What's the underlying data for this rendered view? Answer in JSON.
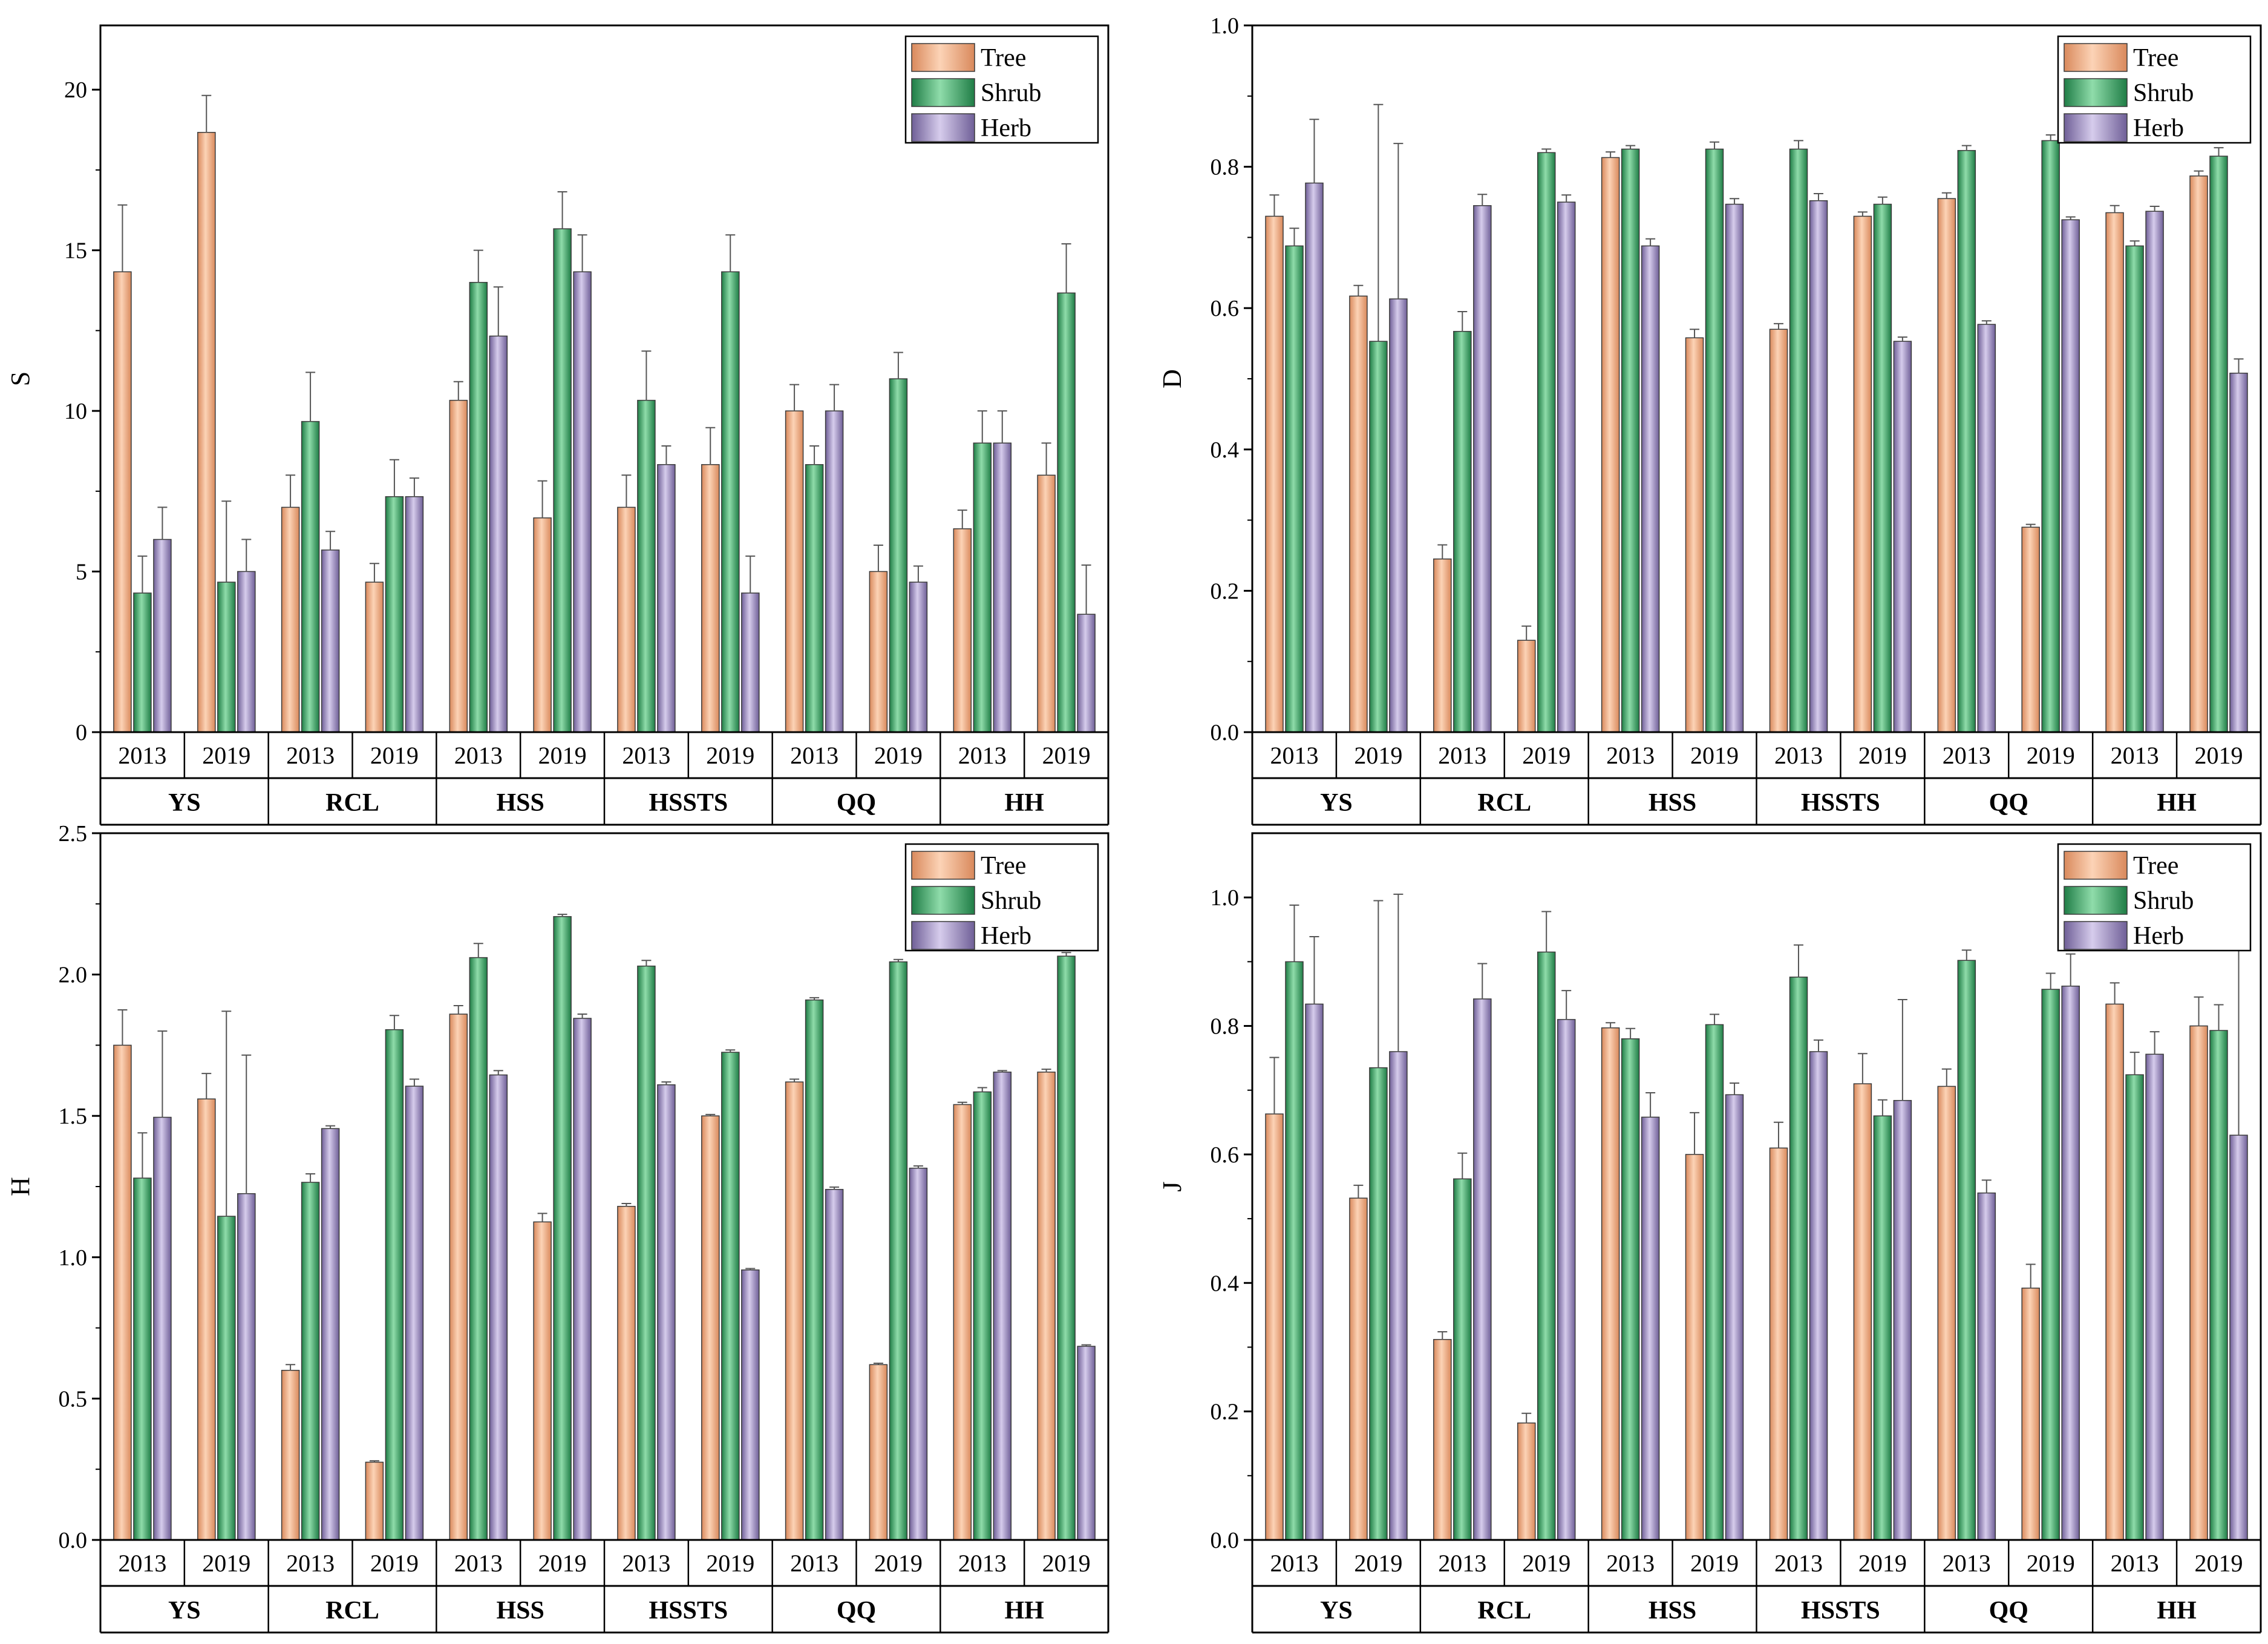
{
  "chart_data": [
    {
      "type": "bar",
      "ylabel": "S",
      "ylim": [
        0,
        22
      ],
      "yticks": [
        0,
        5,
        10,
        15,
        20
      ],
      "sites": [
        "YS",
        "RCL",
        "HSS",
        "HSSTS",
        "QQ",
        "HH"
      ],
      "years": [
        "2013",
        "2019"
      ],
      "legend": [
        "Tree",
        "Shrub",
        "Herb"
      ],
      "series": [
        {
          "name": "Tree",
          "values": [
            14.33,
            18.67,
            7.0,
            4.67,
            10.33,
            6.67,
            7.0,
            8.33,
            10.0,
            5.0,
            6.33,
            8.0
          ],
          "errors": [
            2.08,
            1.15,
            1.0,
            0.58,
            0.58,
            1.15,
            1.0,
            1.15,
            0.82,
            0.82,
            0.58,
            1.0
          ]
        },
        {
          "name": "Shrub",
          "values": [
            4.33,
            4.67,
            9.67,
            7.33,
            14.0,
            15.67,
            10.33,
            14.33,
            8.33,
            11.0,
            9.0,
            13.67
          ],
          "errors": [
            1.15,
            2.52,
            1.53,
            1.15,
            1.0,
            1.15,
            1.53,
            1.15,
            0.58,
            0.82,
            1.0,
            1.53
          ]
        },
        {
          "name": "Herb",
          "values": [
            6.0,
            5.0,
            5.67,
            7.33,
            12.33,
            14.33,
            8.33,
            4.33,
            10.0,
            4.67,
            9.0,
            3.67
          ],
          "errors": [
            1.0,
            1.0,
            0.58,
            0.58,
            1.53,
            1.15,
            0.58,
            1.15,
            0.82,
            0.5,
            1.0,
            1.53
          ]
        }
      ]
    },
    {
      "type": "bar",
      "ylabel": "D",
      "ylim": [
        0,
        1.0
      ],
      "yticks": [
        0.0,
        0.2,
        0.4,
        0.6,
        0.8,
        1.0
      ],
      "sites": [
        "YS",
        "RCL",
        "HSS",
        "HSSTS",
        "QQ",
        "HH"
      ],
      "years": [
        "2013",
        "2019"
      ],
      "legend": [
        "Tree",
        "Shrub",
        "Herb"
      ],
      "series": [
        {
          "name": "Tree",
          "values": [
            0.73,
            0.617,
            0.245,
            0.13,
            0.813,
            0.558,
            0.57,
            0.73,
            0.755,
            0.29,
            0.735,
            0.787
          ],
          "errors": [
            0.03,
            0.015,
            0.02,
            0.02,
            0.008,
            0.012,
            0.008,
            0.006,
            0.008,
            0.004,
            0.01,
            0.007
          ]
        },
        {
          "name": "Shrub",
          "values": [
            0.688,
            0.553,
            0.567,
            0.82,
            0.825,
            0.825,
            0.825,
            0.747,
            0.823,
            0.837,
            0.688,
            0.815
          ],
          "errors": [
            0.025,
            0.335,
            0.028,
            0.005,
            0.005,
            0.01,
            0.012,
            0.01,
            0.007,
            0.008,
            0.007,
            0.012
          ]
        },
        {
          "name": "Herb",
          "values": [
            0.777,
            0.613,
            0.745,
            0.75,
            0.688,
            0.747,
            0.752,
            0.553,
            0.577,
            0.725,
            0.737,
            0.508
          ],
          "errors": [
            0.09,
            0.22,
            0.016,
            0.01,
            0.01,
            0.008,
            0.01,
            0.006,
            0.005,
            0.004,
            0.007,
            0.02
          ]
        }
      ]
    },
    {
      "type": "bar",
      "ylabel": "H",
      "ylim": [
        0,
        2.5
      ],
      "yticks": [
        0.0,
        0.5,
        1.0,
        1.5,
        2.0,
        2.5
      ],
      "sites": [
        "YS",
        "RCL",
        "HSS",
        "HSSTS",
        "QQ",
        "HH"
      ],
      "years": [
        "2013",
        "2019"
      ],
      "legend": [
        "Tree",
        "Shrub",
        "Herb"
      ],
      "series": [
        {
          "name": "Tree",
          "values": [
            1.75,
            1.56,
            0.6,
            0.275,
            1.86,
            1.125,
            1.18,
            1.5,
            1.62,
            0.62,
            1.54,
            1.655
          ],
          "errors": [
            0.125,
            0.09,
            0.02,
            0.005,
            0.03,
            0.03,
            0.01,
            0.005,
            0.01,
            0.005,
            0.008,
            0.01
          ]
        },
        {
          "name": "Shrub",
          "values": [
            1.28,
            1.145,
            1.265,
            1.805,
            2.06,
            2.205,
            2.03,
            1.725,
            1.91,
            2.045,
            1.585,
            2.065
          ],
          "errors": [
            0.16,
            0.725,
            0.03,
            0.05,
            0.05,
            0.008,
            0.02,
            0.008,
            0.008,
            0.008,
            0.015,
            0.013
          ]
        },
        {
          "name": "Herb",
          "values": [
            1.495,
            1.225,
            1.455,
            1.605,
            1.645,
            1.845,
            1.61,
            0.955,
            1.24,
            1.315,
            1.655,
            0.685
          ],
          "errors": [
            0.305,
            0.49,
            0.01,
            0.025,
            0.015,
            0.015,
            0.01,
            0.005,
            0.008,
            0.008,
            0.005,
            0.005
          ]
        }
      ]
    },
    {
      "type": "bar",
      "ylabel": "J",
      "ylim": [
        0,
        1.1
      ],
      "yticks": [
        0.0,
        0.2,
        0.4,
        0.6,
        0.8,
        1.0
      ],
      "sites": [
        "YS",
        "RCL",
        "HSS",
        "HSSTS",
        "QQ",
        "HH"
      ],
      "years": [
        "2013",
        "2019"
      ],
      "legend": [
        "Tree",
        "Shrub",
        "Herb"
      ],
      "series": [
        {
          "name": "Tree",
          "values": [
            0.663,
            0.532,
            0.312,
            0.182,
            0.797,
            0.6,
            0.61,
            0.71,
            0.706,
            0.392,
            0.834,
            0.8
          ],
          "errors": [
            0.088,
            0.02,
            0.012,
            0.015,
            0.008,
            0.065,
            0.04,
            0.047,
            0.027,
            0.037,
            0.033,
            0.045
          ]
        },
        {
          "name": "Shrub",
          "values": [
            0.9,
            0.735,
            0.562,
            0.915,
            0.78,
            0.802,
            0.876,
            0.66,
            0.902,
            0.857,
            0.724,
            0.793
          ],
          "errors": [
            0.088,
            0.26,
            0.04,
            0.063,
            0.016,
            0.016,
            0.05,
            0.025,
            0.016,
            0.025,
            0.035,
            0.04
          ]
        },
        {
          "name": "Herb",
          "values": [
            0.834,
            0.76,
            0.842,
            0.81,
            0.658,
            0.693,
            0.76,
            0.684,
            0.54,
            0.862,
            0.756,
            0.63
          ],
          "errors": [
            0.105,
            0.245,
            0.055,
            0.045,
            0.038,
            0.018,
            0.018,
            0.157,
            0.02,
            0.05,
            0.035,
            0.297
          ]
        }
      ]
    }
  ],
  "colors": {
    "Tree": "#f5b48e",
    "Shrub": "#4cb877",
    "Herb": "#aa9bc7",
    "axis": "#000000"
  }
}
